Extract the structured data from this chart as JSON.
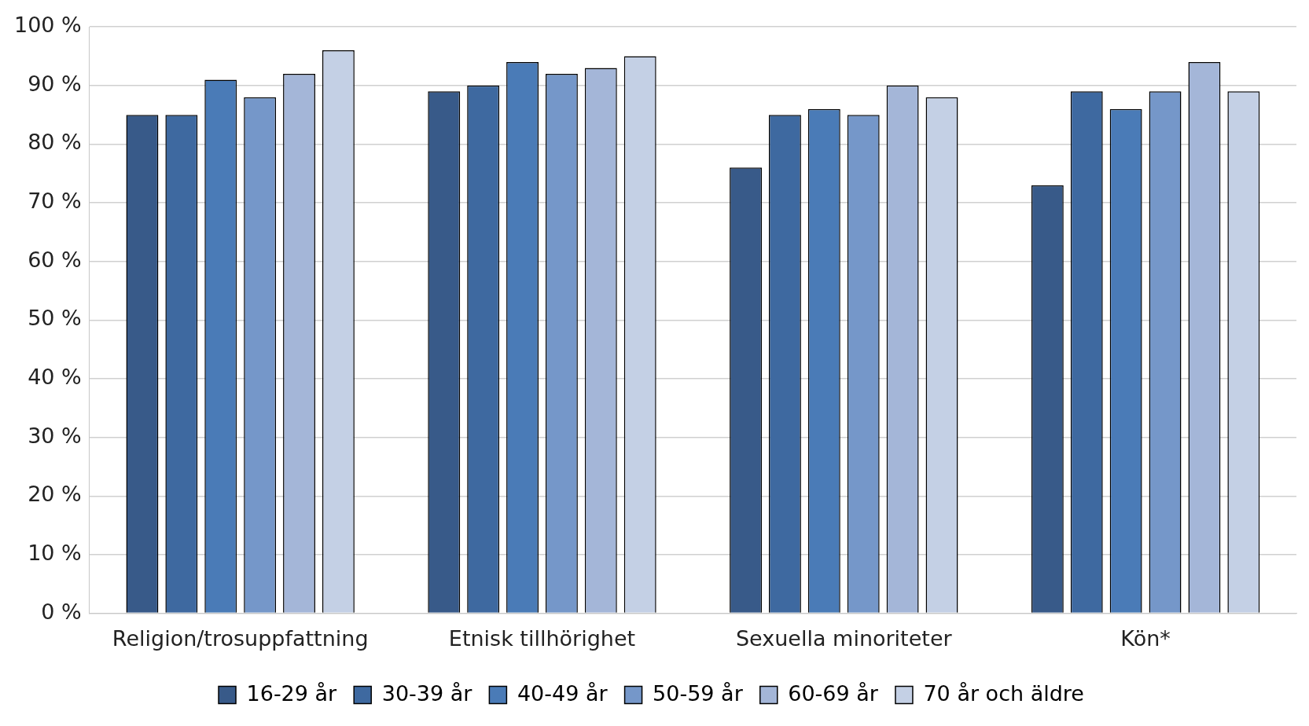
{
  "chart_data": {
    "type": "bar",
    "categories": [
      "Religion/trosuppfattning",
      "Etnisk tillhörighet",
      "Sexuella minoriteter",
      "Kön*"
    ],
    "series": [
      {
        "name": "16-29 år",
        "color": "#385a89",
        "values": [
          85,
          89,
          76,
          73
        ]
      },
      {
        "name": "30-39 år",
        "color": "#3e69a0",
        "values": [
          85,
          90,
          85,
          89
        ]
      },
      {
        "name": "40-49 år",
        "color": "#4a7bb7",
        "values": [
          91,
          94,
          86,
          86
        ]
      },
      {
        "name": "50-59 år",
        "color": "#7597c9",
        "values": [
          88,
          92,
          85,
          89
        ]
      },
      {
        "name": "60-69 år",
        "color": "#a4b6d8",
        "values": [
          92,
          93,
          90,
          94
        ]
      },
      {
        "name": "70 år och äldre",
        "color": "#c4d0e5",
        "values": [
          96,
          95,
          88,
          89
        ]
      }
    ],
    "ylim": [
      0,
      100
    ],
    "yticks": [
      {
        "value": 0,
        "label": "0 %"
      },
      {
        "value": 10,
        "label": "10 %"
      },
      {
        "value": 20,
        "label": "20 %"
      },
      {
        "value": 30,
        "label": "30 %"
      },
      {
        "value": 40,
        "label": "40 %"
      },
      {
        "value": 50,
        "label": "50 %"
      },
      {
        "value": 60,
        "label": "60 %"
      },
      {
        "value": 70,
        "label": "70 %"
      },
      {
        "value": 80,
        "label": "80 %"
      },
      {
        "value": 90,
        "label": "90 %"
      },
      {
        "value": 100,
        "label": "100 %"
      }
    ],
    "grid": "y",
    "legend": "bottom"
  }
}
